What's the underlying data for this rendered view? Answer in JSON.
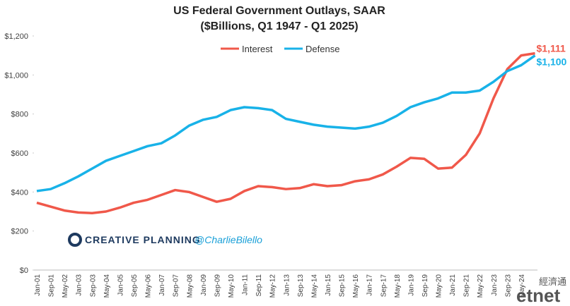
{
  "chart_data": {
    "type": "line",
    "title": "US Federal Government Outlays, SAAR",
    "subtitle": "($Billions, Q1 1947 - Q1 2025)",
    "categories": [
      "Jan-01",
      "Sep-01",
      "May-02",
      "Jan-03",
      "Sep-03",
      "May-04",
      "Jan-05",
      "Sep-05",
      "May-06",
      "Jan-07",
      "Sep-07",
      "May-08",
      "Jan-09",
      "Sep-09",
      "May-10",
      "Jan-11",
      "Sep-11",
      "May-12",
      "Jan-13",
      "Sep-13",
      "May-14",
      "Jan-15",
      "Sep-15",
      "May-16",
      "Jan-17",
      "Sep-17",
      "May-18",
      "Jan-19",
      "Sep-19",
      "May-20",
      "Jan-21",
      "Sep-21",
      "May-22",
      "Jan-23",
      "Sep-23",
      "May-24",
      null
    ],
    "series": [
      {
        "name": "Interest",
        "color": "#f0584a",
        "values": [
          345,
          325,
          305,
          295,
          292,
          300,
          320,
          345,
          360,
          385,
          410,
          400,
          375,
          350,
          365,
          405,
          430,
          425,
          415,
          420,
          440,
          430,
          435,
          455,
          465,
          490,
          530,
          575,
          570,
          520,
          525,
          590,
          700,
          880,
          1030,
          1100,
          1111
        ],
        "value_labels": [
          null,
          null,
          null,
          null,
          null,
          null,
          null,
          null,
          null,
          null,
          null,
          null,
          null,
          null,
          null,
          null,
          null,
          null,
          null,
          null,
          null,
          null,
          null,
          null,
          null,
          null,
          null,
          null,
          null,
          null,
          null,
          null,
          null,
          null,
          null,
          null,
          "$1,111"
        ]
      },
      {
        "name": "Defense",
        "color": "#18b2e8",
        "values": [
          405,
          415,
          445,
          480,
          520,
          560,
          585,
          610,
          635,
          650,
          690,
          740,
          770,
          785,
          820,
          835,
          830,
          820,
          775,
          760,
          745,
          735,
          730,
          725,
          735,
          755,
          790,
          835,
          860,
          880,
          910,
          910,
          920,
          965,
          1020,
          1050,
          1100
        ],
        "value_labels": [
          null,
          null,
          null,
          null,
          null,
          null,
          null,
          null,
          null,
          null,
          null,
          null,
          null,
          null,
          null,
          null,
          null,
          null,
          null,
          null,
          null,
          null,
          null,
          null,
          null,
          null,
          null,
          null,
          null,
          null,
          null,
          null,
          null,
          null,
          null,
          null,
          "$1,100"
        ]
      }
    ],
    "ylim": [
      0,
      1200
    ],
    "yticks": [
      {
        "value": 0,
        "label": "$0"
      },
      {
        "value": 200,
        "label": "$200"
      },
      {
        "value": 400,
        "label": "$400"
      },
      {
        "value": 600,
        "label": "$600"
      },
      {
        "value": 800,
        "label": "$800"
      },
      {
        "value": 1000,
        "label": "$1,000"
      },
      {
        "value": 1200,
        "label": "$1,200"
      }
    ],
    "grid": false,
    "legend": "top",
    "logo": "CREATIVE PLANNING",
    "handle": "@CharlieBilello",
    "watermark": [
      "經濟通",
      "etnet"
    ]
  }
}
